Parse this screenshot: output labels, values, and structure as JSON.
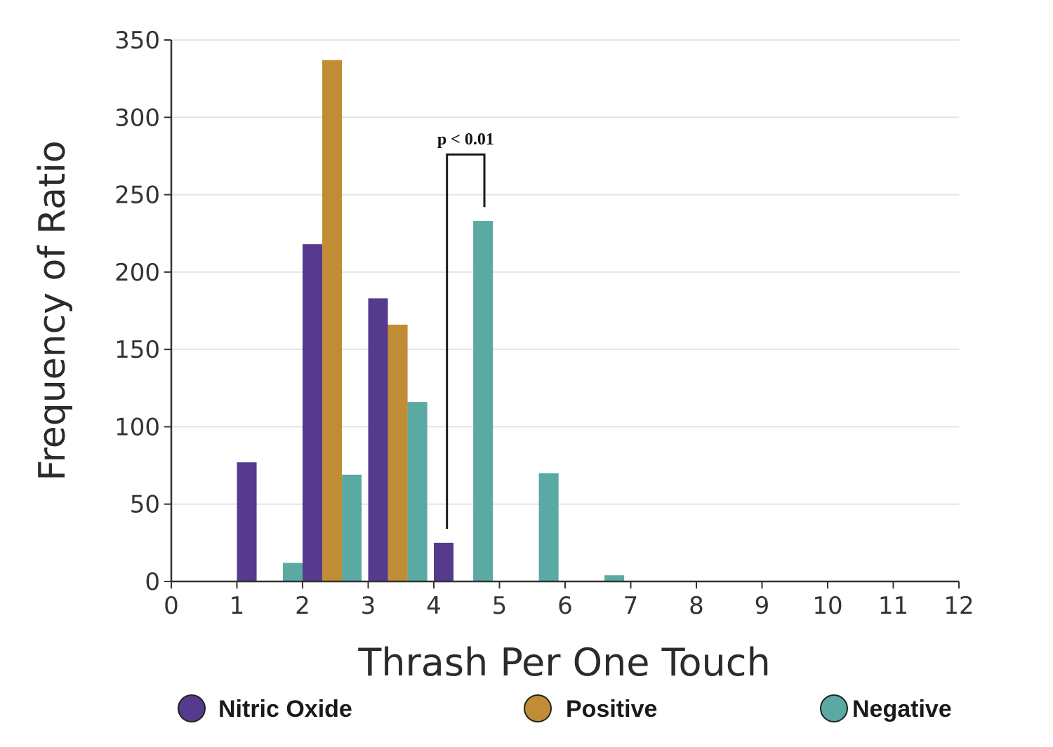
{
  "chart_data": {
    "type": "bar",
    "xlabel": "Thrash Per One Touch",
    "ylabel": "Frequency of Ratio",
    "xlim": [
      0,
      12
    ],
    "ylim": [
      0,
      350
    ],
    "x_ticks": [
      "0",
      "1",
      "2",
      "3",
      "4",
      "5",
      "6",
      "7",
      "8",
      "9",
      "10",
      "11",
      "12"
    ],
    "y_ticks": [
      "0",
      "50",
      "100",
      "150",
      "200",
      "250",
      "300",
      "350"
    ],
    "grid": "horizontal",
    "legend_position": "bottom",
    "series": [
      {
        "name": "Nitric Oxide",
        "color": "#553a8e",
        "bars": [
          {
            "x0": 1.0,
            "x1": 1.3,
            "value": 77
          },
          {
            "x0": 2.0,
            "x1": 2.3,
            "value": 218
          },
          {
            "x0": 3.0,
            "x1": 3.3,
            "value": 183
          },
          {
            "x0": 4.0,
            "x1": 4.3,
            "value": 25
          }
        ]
      },
      {
        "name": "Positive",
        "color": "#c08c35",
        "bars": [
          {
            "x0": 2.3,
            "x1": 2.6,
            "value": 337
          },
          {
            "x0": 3.3,
            "x1": 3.6,
            "value": 166
          }
        ]
      },
      {
        "name": "Negative",
        "color": "#5aa9a3",
        "bars": [
          {
            "x0": 1.7,
            "x1": 2.0,
            "value": 12
          },
          {
            "x0": 2.6,
            "x1": 2.9,
            "value": 69
          },
          {
            "x0": 3.6,
            "x1": 3.9,
            "value": 116
          },
          {
            "x0": 4.6,
            "x1": 4.9,
            "value": 233
          },
          {
            "x0": 5.6,
            "x1": 5.9,
            "value": 70
          },
          {
            "x0": 6.6,
            "x1": 6.9,
            "value": 4
          }
        ]
      }
    ],
    "annotation": {
      "text": "p < 0.01",
      "x_left": 4.2,
      "x_right": 4.77,
      "bracket_top": 276,
      "left_end": 34,
      "right_end": 242
    }
  }
}
